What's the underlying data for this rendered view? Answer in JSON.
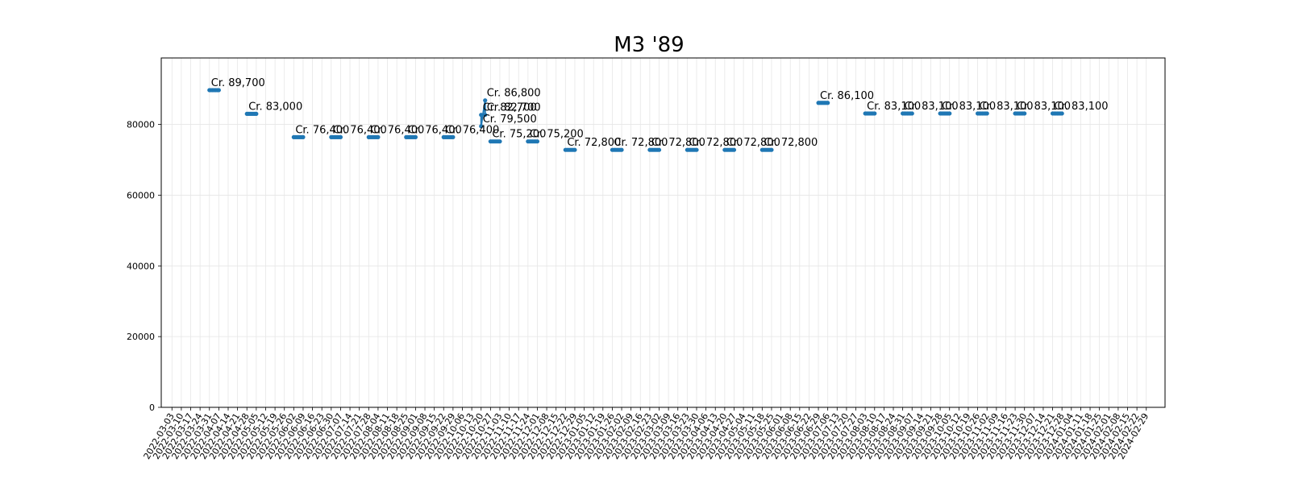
{
  "chart_data": {
    "type": "line",
    "title": "M3 '89",
    "xlabel": "",
    "ylabel": "",
    "ylim": [
      0,
      98800
    ],
    "yticks": [
      0,
      20000,
      40000,
      60000,
      80000
    ],
    "grid": true,
    "color": "#1f77b4",
    "x_dates": [
      "2022-03-03",
      "2022-03-10",
      "2022-03-17",
      "2022-03-24",
      "2022-03-31",
      "2022-04-07",
      "2022-04-14",
      "2022-04-21",
      "2022-04-28",
      "2022-05-05",
      "2022-05-12",
      "2022-05-19",
      "2022-05-26",
      "2022-06-02",
      "2022-06-09",
      "2022-06-16",
      "2022-06-23",
      "2022-06-30",
      "2022-07-07",
      "2022-07-14",
      "2022-07-21",
      "2022-07-28",
      "2022-08-04",
      "2022-08-11",
      "2022-08-18",
      "2022-08-25",
      "2022-09-01",
      "2022-09-08",
      "2022-09-15",
      "2022-09-22",
      "2022-09-29",
      "2022-10-06",
      "2022-10-13",
      "2022-10-20",
      "2022-10-27",
      "2022-11-03",
      "2022-11-10",
      "2022-11-17",
      "2022-11-24",
      "2022-12-01",
      "2022-12-08",
      "2022-12-15",
      "2022-12-22",
      "2022-12-29",
      "2023-01-05",
      "2023-01-12",
      "2023-01-19",
      "2023-01-26",
      "2023-02-02",
      "2023-02-09",
      "2023-02-16",
      "2023-02-23",
      "2023-03-02",
      "2023-03-09",
      "2023-03-16",
      "2023-03-23",
      "2023-03-30",
      "2023-04-06",
      "2023-04-13",
      "2023-04-20",
      "2023-04-27",
      "2023-05-04",
      "2023-05-11",
      "2023-05-18",
      "2023-05-25",
      "2023-06-01",
      "2023-06-08",
      "2023-06-15",
      "2023-06-22",
      "2023-06-29",
      "2023-07-06",
      "2023-07-13",
      "2023-07-20",
      "2023-07-27",
      "2023-08-03",
      "2023-08-10",
      "2023-08-17",
      "2023-08-24",
      "2023-08-31",
      "2023-09-07",
      "2023-09-14",
      "2023-09-21",
      "2023-09-28",
      "2023-10-05",
      "2023-10-12",
      "2023-10-19",
      "2023-10-26",
      "2023-11-02",
      "2023-11-09",
      "2023-11-16",
      "2023-11-23",
      "2023-11-30",
      "2023-12-07",
      "2023-12-14",
      "2023-12-21",
      "2023-12-28",
      "2024-01-04",
      "2024-01-11",
      "2024-01-18",
      "2024-01-25",
      "2024-02-01",
      "2024-02-08",
      "2024-02-15",
      "2024-02-22",
      "2024-02-29"
    ],
    "segments": [
      {
        "start": "2022-03-31",
        "end": "2022-04-07",
        "value": 89700,
        "label": "Cr. 89,700"
      },
      {
        "start": "2022-04-28",
        "end": "2022-05-05",
        "value": 83000,
        "label": "Cr. 83,000"
      },
      {
        "start": "2022-06-02",
        "end": "2022-06-09",
        "value": 76400,
        "label": "Cr. 76,400"
      },
      {
        "start": "2022-06-30",
        "end": "2022-07-07",
        "value": 76400,
        "label": "Cr. 76,400"
      },
      {
        "start": "2022-07-28",
        "end": "2022-08-04",
        "value": 76400,
        "label": "Cr. 76,400"
      },
      {
        "start": "2022-08-25",
        "end": "2022-09-01",
        "value": 76400,
        "label": "Cr. 76,400"
      },
      {
        "start": "2022-09-22",
        "end": "2022-09-29",
        "value": 76400,
        "label": "Cr. 76,400"
      },
      {
        "start": "2022-10-27",
        "end": "2022-11-03",
        "value": 75200,
        "label": "Cr. 75,200"
      },
      {
        "start": "2022-11-24",
        "end": "2022-12-01",
        "value": 75200,
        "label": "Cr. 75,200"
      },
      {
        "start": "2022-12-22",
        "end": "2022-12-29",
        "value": 72800,
        "label": "Cr. 72,800"
      },
      {
        "start": "2023-01-26",
        "end": "2023-02-02",
        "value": 72800,
        "label": "Cr. 72,800"
      },
      {
        "start": "2023-02-23",
        "end": "2023-03-02",
        "value": 72800,
        "label": "Cr. 72,800"
      },
      {
        "start": "2023-03-23",
        "end": "2023-03-30",
        "value": 72800,
        "label": "Cr. 72,800"
      },
      {
        "start": "2023-04-20",
        "end": "2023-04-27",
        "value": 72800,
        "label": "Cr. 72,800"
      },
      {
        "start": "2023-05-18",
        "end": "2023-05-25",
        "value": 72800,
        "label": "Cr. 72,800"
      },
      {
        "start": "2023-06-29",
        "end": "2023-07-06",
        "value": 86100,
        "label": "Cr. 86,100"
      },
      {
        "start": "2023-08-03",
        "end": "2023-08-10",
        "value": 83100,
        "label": "Cr. 83,100"
      },
      {
        "start": "2023-08-31",
        "end": "2023-09-07",
        "value": 83100,
        "label": "Cr. 83,100"
      },
      {
        "start": "2023-09-28",
        "end": "2023-10-05",
        "value": 83100,
        "label": "Cr. 83,100"
      },
      {
        "start": "2023-10-26",
        "end": "2023-11-02",
        "value": 83100,
        "label": "Cr. 83,100"
      },
      {
        "start": "2023-11-23",
        "end": "2023-11-30",
        "value": 83100,
        "label": "Cr. 83,100"
      },
      {
        "start": "2023-12-21",
        "end": "2023-12-28",
        "value": 83100,
        "label": "Cr. 83,100"
      }
    ],
    "cluster": {
      "points": [
        {
          "date": "2022-10-20",
          "value": 82700,
          "label": "Cr. 82,700"
        },
        {
          "date": "2022-10-20",
          "value": 79500,
          "label": "Cr. 79,500"
        },
        {
          "date": "2022-10-23",
          "value": 86800,
          "label": "Cr. 86,800"
        },
        {
          "date": "2022-10-23",
          "value": 82700,
          "label": "Cr. 82,700"
        }
      ]
    }
  }
}
